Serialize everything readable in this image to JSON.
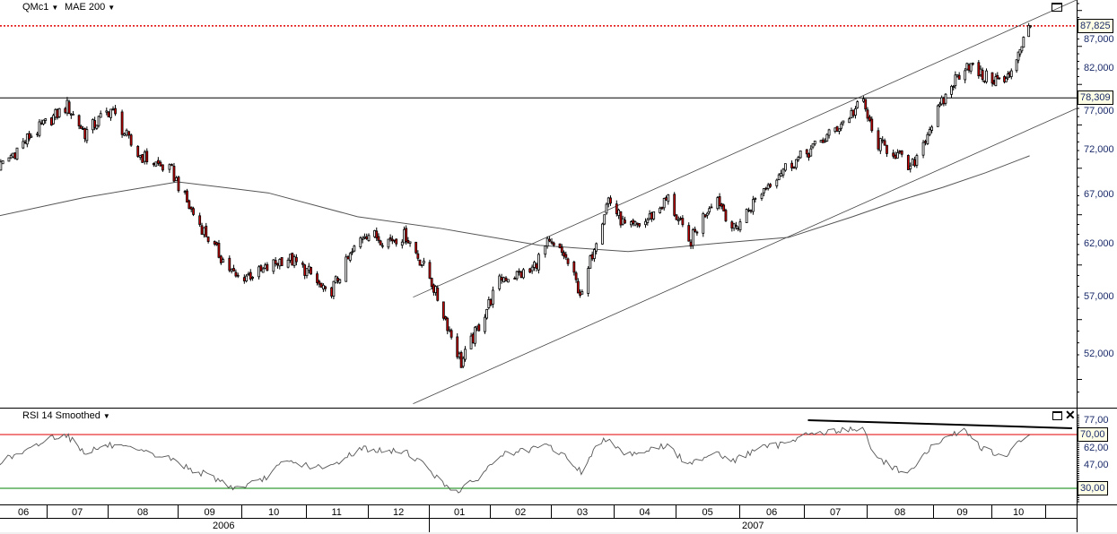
{
  "header": {
    "symbol": "QMc1",
    "indicator": "MAE 200"
  },
  "rsi_panel": {
    "title": "RSI 14 Smoothed"
  },
  "colors": {
    "up_body": "#ffffff",
    "down_body": "#d40000",
    "last_price_line": "#e00000",
    "rsi_overbought": "#e00000",
    "rsi_oversold": "#008000",
    "line": "#000000",
    "ma": "#555555"
  },
  "icons": {
    "price_maximize": "maximize-icon",
    "rsi_maximize": "maximize-icon",
    "rsi_close": "close-icon"
  },
  "chart_data": [
    {
      "type": "candlestick",
      "title": "",
      "scale": "log",
      "ylim": [
        48000,
        91000
      ],
      "y_tick_labels": [
        "52,000",
        "57,000",
        "62,000",
        "67,000",
        "72,000",
        "77,000",
        "82,000",
        "87,000"
      ],
      "last_price_label": "87,825",
      "last_price": 87825,
      "horizontal_line_label": "78,309",
      "horizontal_line": 78309,
      "close_path": [
        [
          "2006-06-08",
          70200
        ],
        [
          "2006-06-22",
          73600
        ],
        [
          "2006-07-11",
          77300
        ],
        [
          "2006-07-20",
          74000
        ],
        [
          "2006-08-02",
          76900
        ],
        [
          "2006-08-13",
          71700
        ],
        [
          "2006-08-29",
          69600
        ],
        [
          "2006-09-06",
          65800
        ],
        [
          "2006-09-18",
          61600
        ],
        [
          "2006-09-28",
          58800
        ],
        [
          "2006-10-10",
          59300
        ],
        [
          "2006-10-22",
          60800
        ],
        [
          "2006-11-02",
          59300
        ],
        [
          "2006-11-11",
          57000
        ],
        [
          "2006-11-22",
          60800
        ],
        [
          "2006-11-29",
          63200
        ],
        [
          "2006-12-10",
          62400
        ],
        [
          "2006-12-20",
          62900
        ],
        [
          "2007-01-01",
          58800
        ],
        [
          "2007-01-08",
          55500
        ],
        [
          "2007-01-17",
          51300
        ],
        [
          "2007-01-28",
          55200
        ],
        [
          "2007-02-06",
          58800
        ],
        [
          "2007-02-19",
          59300
        ],
        [
          "2007-02-27",
          62000
        ],
        [
          "2007-03-07",
          61000
        ],
        [
          "2007-03-16",
          57000
        ],
        [
          "2007-03-22",
          62000
        ],
        [
          "2007-03-29",
          66700
        ],
        [
          "2007-04-07",
          63400
        ],
        [
          "2007-04-16",
          64300
        ],
        [
          "2007-04-27",
          66700
        ],
        [
          "2007-05-07",
          62000
        ],
        [
          "2007-05-20",
          67200
        ],
        [
          "2007-05-29",
          63400
        ],
        [
          "2007-06-10",
          67200
        ],
        [
          "2007-06-19",
          69600
        ],
        [
          "2007-07-01",
          71500
        ],
        [
          "2007-07-14",
          74000
        ],
        [
          "2007-07-30",
          77800
        ],
        [
          "2007-08-04",
          73100
        ],
        [
          "2007-08-14",
          71700
        ],
        [
          "2007-08-21",
          69800
        ],
        [
          "2007-08-31",
          75200
        ],
        [
          "2007-09-11",
          80300
        ],
        [
          "2007-09-18",
          82800
        ],
        [
          "2007-09-26",
          81000
        ],
        [
          "2007-10-09",
          80300
        ],
        [
          "2007-10-17",
          84900
        ],
        [
          "2007-10-23",
          87825
        ]
      ],
      "moving_average": {
        "name": "MAE 200",
        "points": [
          [
            "2006-06-01",
            64600
          ],
          [
            "2006-07-20",
            66800
          ],
          [
            "2006-09-01",
            68500
          ],
          [
            "2006-10-14",
            67300
          ],
          [
            "2006-11-26",
            64800
          ],
          [
            "2007-01-07",
            63600
          ],
          [
            "2007-02-24",
            61900
          ],
          [
            "2007-04-08",
            61300
          ],
          [
            "2007-05-21",
            62100
          ],
          [
            "2007-06-24",
            62700
          ],
          [
            "2007-07-25",
            64800
          ],
          [
            "2007-08-15",
            66400
          ],
          [
            "2007-09-06",
            67900
          ],
          [
            "2007-09-28",
            69500
          ],
          [
            "2007-10-23",
            71400
          ]
        ]
      },
      "trendlines": [
        [
          [
            "2006-12-24",
            57000
          ],
          [
            "2007-11-01",
            89500
          ]
        ],
        [
          [
            "2006-12-24",
            48100
          ],
          [
            "2007-11-01",
            75300
          ]
        ]
      ]
    },
    {
      "type": "line",
      "title": "RSI 14 Smoothed",
      "ylim": [
        20,
        85
      ],
      "y_tick_labels": [
        "47,00",
        "62,00",
        "77,00"
      ],
      "levels": [
        {
          "value": 70,
          "label": "70,00"
        },
        {
          "value": 30,
          "label": "30,00"
        }
      ],
      "points": [
        [
          "2006-06-01",
          55
        ],
        [
          "2006-06-08",
          50
        ],
        [
          "2006-06-22",
          58
        ],
        [
          "2006-07-03",
          68
        ],
        [
          "2006-07-11",
          70
        ],
        [
          "2006-07-20",
          57
        ],
        [
          "2006-08-02",
          62
        ],
        [
          "2006-08-13",
          58
        ],
        [
          "2006-08-29",
          52
        ],
        [
          "2006-09-06",
          45
        ],
        [
          "2006-09-18",
          38
        ],
        [
          "2006-09-28",
          30
        ],
        [
          "2006-10-10",
          35
        ],
        [
          "2006-10-22",
          50
        ],
        [
          "2006-11-02",
          47
        ],
        [
          "2006-11-11",
          44
        ],
        [
          "2006-11-22",
          55
        ],
        [
          "2006-11-29",
          60
        ],
        [
          "2006-12-10",
          57
        ],
        [
          "2006-12-20",
          58
        ],
        [
          "2007-01-01",
          45
        ],
        [
          "2007-01-08",
          33
        ],
        [
          "2007-01-17",
          28
        ],
        [
          "2007-01-28",
          40
        ],
        [
          "2007-02-06",
          55
        ],
        [
          "2007-02-19",
          58
        ],
        [
          "2007-02-27",
          62
        ],
        [
          "2007-03-07",
          55
        ],
        [
          "2007-03-16",
          42
        ],
        [
          "2007-03-22",
          58
        ],
        [
          "2007-03-29",
          68
        ],
        [
          "2007-04-07",
          55
        ],
        [
          "2007-04-16",
          58
        ],
        [
          "2007-04-27",
          62
        ],
        [
          "2007-05-07",
          47
        ],
        [
          "2007-05-20",
          58
        ],
        [
          "2007-05-29",
          50
        ],
        [
          "2007-06-10",
          60
        ],
        [
          "2007-06-19",
          62
        ],
        [
          "2007-07-01",
          70
        ],
        [
          "2007-07-14",
          72
        ],
        [
          "2007-07-30",
          75
        ],
        [
          "2007-08-04",
          55
        ],
        [
          "2007-08-14",
          45
        ],
        [
          "2007-08-21",
          42
        ],
        [
          "2007-08-31",
          60
        ],
        [
          "2007-09-11",
          70
        ],
        [
          "2007-09-18",
          73
        ],
        [
          "2007-09-26",
          60
        ],
        [
          "2007-10-09",
          52
        ],
        [
          "2007-10-17",
          65
        ],
        [
          "2007-10-23",
          70
        ]
      ],
      "trendline": [
        [
          "2007-07-03",
          80.7
        ],
        [
          "2007-11-01",
          74.7
        ]
      ]
    }
  ],
  "x_axis": {
    "months": [
      "06",
      "07",
      "08",
      "09",
      "10",
      "11",
      "12",
      "01",
      "02",
      "03",
      "04",
      "05",
      "06",
      "07",
      "08",
      "09",
      "10"
    ],
    "years": [
      "2006",
      "2007"
    ]
  }
}
